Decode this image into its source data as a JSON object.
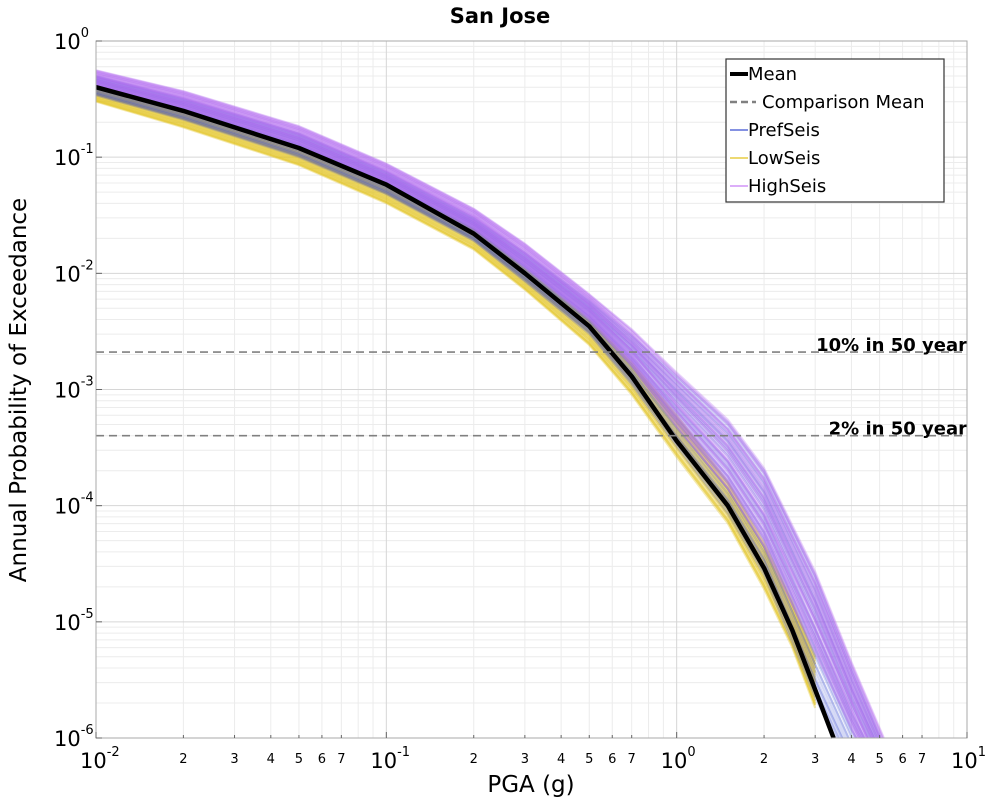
{
  "chart_data": {
    "type": "line",
    "title": "San Jose",
    "xlabel": "PGA (g)",
    "ylabel": "Annual Probability of Exceedance",
    "xscale": "log",
    "yscale": "log",
    "xlim": [
      0.01,
      10
    ],
    "ylim": [
      1e-06,
      1
    ],
    "grid": true,
    "legend_position": "top-right",
    "x_major_ticks": [
      {
        "value": 0.01,
        "base": "10",
        "exp": "-2"
      },
      {
        "value": 0.1,
        "base": "10",
        "exp": "-1"
      },
      {
        "value": 1,
        "base": "10",
        "exp": "0"
      },
      {
        "value": 10,
        "base": "10",
        "exp": "1"
      }
    ],
    "x_minor_tick_labels": [
      "2",
      "3",
      "4",
      "5",
      "6",
      "7"
    ],
    "y_major_ticks": [
      {
        "value": 1,
        "base": "10",
        "exp": "0"
      },
      {
        "value": 0.1,
        "base": "10",
        "exp": "-1"
      },
      {
        "value": 0.01,
        "base": "10",
        "exp": "-2"
      },
      {
        "value": 0.001,
        "base": "10",
        "exp": "-3"
      },
      {
        "value": 0.0001,
        "base": "10",
        "exp": "-4"
      },
      {
        "value": 1e-05,
        "base": "10",
        "exp": "-5"
      },
      {
        "value": 1e-06,
        "base": "10",
        "exp": "-6"
      }
    ],
    "series": [
      {
        "name": "Mean",
        "color": "#000000",
        "style": "solid-thick",
        "x": [
          0.01,
          0.02,
          0.05,
          0.1,
          0.2,
          0.3,
          0.5,
          0.7,
          1.0,
          1.5,
          2.0,
          2.5,
          3.0,
          3.5
        ],
        "y": [
          0.4,
          0.25,
          0.12,
          0.058,
          0.022,
          0.01,
          0.0035,
          0.0013,
          0.00036,
          0.0001,
          2.9e-05,
          8.5e-06,
          2.6e-06,
          9.5e-07
        ]
      },
      {
        "name": "PrefSeis",
        "color": "#3a4fd0",
        "style": "band",
        "x": [
          0.01,
          0.02,
          0.05,
          0.1,
          0.2,
          0.3,
          0.5,
          0.7,
          1.0,
          1.5,
          2.0,
          3.0,
          4.0,
          5.5
        ],
        "y_low": [
          0.34,
          0.21,
          0.1,
          0.048,
          0.019,
          0.0085,
          0.003,
          0.0011,
          0.00032,
          8.5e-05,
          2.5e-05,
          2.2e-06,
          5e-07,
          2e-07
        ],
        "y_high": [
          0.5,
          0.32,
          0.16,
          0.075,
          0.03,
          0.015,
          0.0058,
          0.0029,
          0.0013,
          0.00052,
          0.0002,
          2.5e-05,
          4e-06,
          6e-07
        ]
      },
      {
        "name": "LowSeis",
        "color": "#e2c21d",
        "style": "band",
        "x": [
          0.01,
          0.02,
          0.05,
          0.1,
          0.2,
          0.3,
          0.5,
          0.7,
          1.0,
          1.5,
          2.0,
          2.5,
          3.0
        ],
        "y_low": [
          0.3,
          0.18,
          0.085,
          0.04,
          0.016,
          0.0072,
          0.0024,
          0.0009,
          0.00026,
          7e-05,
          1.9e-05,
          6e-06,
          1.8e-06
        ],
        "y_high": [
          0.4,
          0.25,
          0.12,
          0.058,
          0.024,
          0.011,
          0.004,
          0.0017,
          0.0006,
          0.00016,
          4.8e-05,
          1.5e-05,
          5e-06
        ]
      },
      {
        "name": "HighSeis",
        "color": "#b26cf2",
        "style": "band",
        "x": [
          0.01,
          0.02,
          0.05,
          0.1,
          0.2,
          0.3,
          0.5,
          0.7,
          1.0,
          1.5,
          2.0,
          3.0,
          4.0,
          5.5
        ],
        "y_low": [
          0.4,
          0.26,
          0.125,
          0.06,
          0.024,
          0.0112,
          0.004,
          0.0016,
          0.00048,
          0.00014,
          4.5e-05,
          5.5e-06,
          1.2e-06,
          2e-07
        ],
        "y_high": [
          0.56,
          0.37,
          0.185,
          0.088,
          0.036,
          0.018,
          0.0066,
          0.0033,
          0.0014,
          0.00055,
          0.00021,
          2.7e-05,
          4.5e-06,
          7e-07
        ]
      }
    ],
    "legend": [
      {
        "label": "Mean",
        "color": "#000000",
        "style": "solid-thick"
      },
      {
        "label": "Comparison Mean",
        "color": "#808080",
        "style": "dashed"
      },
      {
        "label": "PrefSeis",
        "color": "#3a4fd0",
        "style": "thin"
      },
      {
        "label": "LowSeis",
        "color": "#e2c21d",
        "style": "thin"
      },
      {
        "label": "HighSeis",
        "color": "#c77df5",
        "style": "thin"
      }
    ],
    "reference_lines": [
      {
        "label": "10% in 50 year",
        "y": 0.0021,
        "color": "#808080"
      },
      {
        "label": "2% in 50 year",
        "y": 0.0004,
        "color": "#808080"
      }
    ]
  }
}
